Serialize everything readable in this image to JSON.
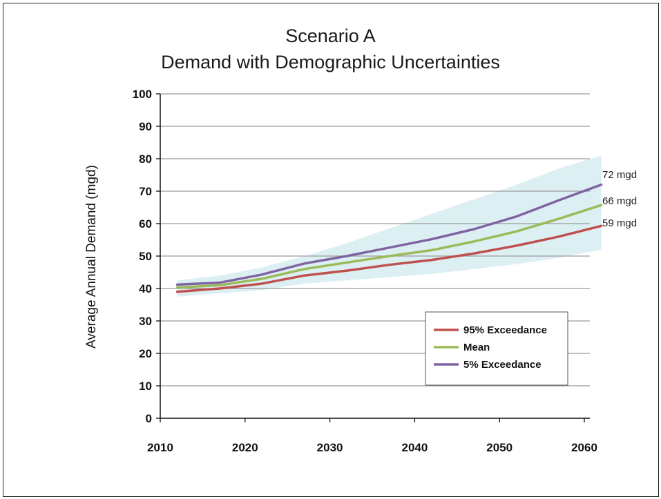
{
  "chart_data": {
    "type": "line",
    "title": "Scenario A",
    "subtitle": "Demand with Demographic Uncertainties",
    "xlabel": "",
    "ylabel": "Average Annual Demand (mgd)",
    "xlim": [
      2010,
      2060
    ],
    "ylim": [
      0,
      100
    ],
    "x_ticks": [
      "2010",
      "2020",
      "2030",
      "2040",
      "2050",
      "2060"
    ],
    "y_ticks": [
      "0",
      "10",
      "20",
      "30",
      "40",
      "50",
      "60",
      "70",
      "80",
      "90",
      "100"
    ],
    "grid": "horizontal",
    "legend_position": "bottom-right",
    "x": [
      2012,
      2017,
      2022,
      2027,
      2032,
      2037,
      2042,
      2047,
      2052,
      2057,
      2062
    ],
    "series": [
      {
        "name": "95% Exceedance",
        "color": "#c0504d",
        "values": [
          39,
          40,
          41.5,
          44,
          45.5,
          47.3,
          48.8,
          50.8,
          53.2,
          56,
          59.3
        ]
      },
      {
        "name": "Mean",
        "color": "#9bbb59",
        "values": [
          40.3,
          41,
          43,
          46,
          48,
          50,
          51.8,
          54.5,
          57.6,
          61.5,
          65.7
        ]
      },
      {
        "name": "5% Exceedance",
        "color": "#8064a2",
        "values": [
          41.2,
          41.8,
          44.3,
          47.7,
          50,
          52.6,
          55.2,
          58.3,
          62.2,
          67.2,
          72
        ]
      }
    ],
    "band": {
      "color": "#dceff3",
      "upper": [
        42.5,
        44,
        46.5,
        50,
        54,
        58.5,
        63,
        67.5,
        72,
        77,
        81
      ],
      "lower": [
        37.5,
        38.5,
        39.5,
        41.5,
        42.5,
        43.5,
        44.5,
        46,
        47.5,
        49.5,
        52
      ]
    },
    "end_labels": [
      "72 mgd",
      "66 mgd",
      "59 mgd"
    ]
  }
}
